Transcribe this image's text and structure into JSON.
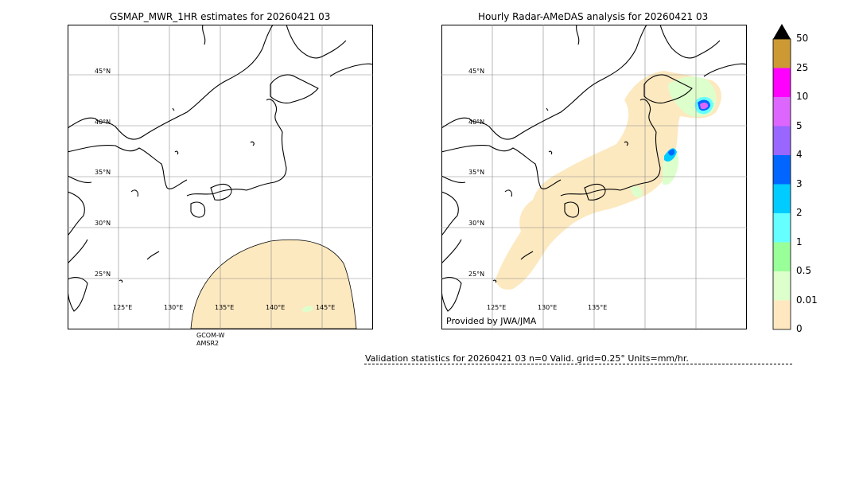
{
  "left_panel": {
    "title": "GSMAP_MWR_1HR estimates for 20260421 03",
    "sensor": [
      "GCOM-W",
      "AMSR2"
    ]
  },
  "right_panel": {
    "title": "Hourly Radar-AMeDAS analysis for 20260421 03",
    "credit": "Provided by JWA/JMA"
  },
  "lat_labels": [
    "45°N",
    "40°N",
    "35°N",
    "30°N",
    "25°N"
  ],
  "lon_labels_left": [
    "125°E",
    "130°E",
    "135°E",
    "140°E",
    "145°E"
  ],
  "lon_labels_right": [
    "125°E",
    "130°E",
    "135°E"
  ],
  "colorbar": {
    "ticks": [
      "50",
      "25",
      "10",
      "5",
      "4",
      "3",
      "2",
      "1",
      "0.5",
      "0.01",
      "0"
    ],
    "colors": [
      "#cc9933",
      "#ff00ff",
      "#dd66ff",
      "#9966ff",
      "#0066ff",
      "#00ccff",
      "#66ffff",
      "#99ff99",
      "#ddffcc",
      "#ffe8c0"
    ],
    "extend_color": "#000000"
  },
  "validation": "Validation statistics for 20260421 03  n=0 Valid. grid=0.25° Units=mm/hr."
}
